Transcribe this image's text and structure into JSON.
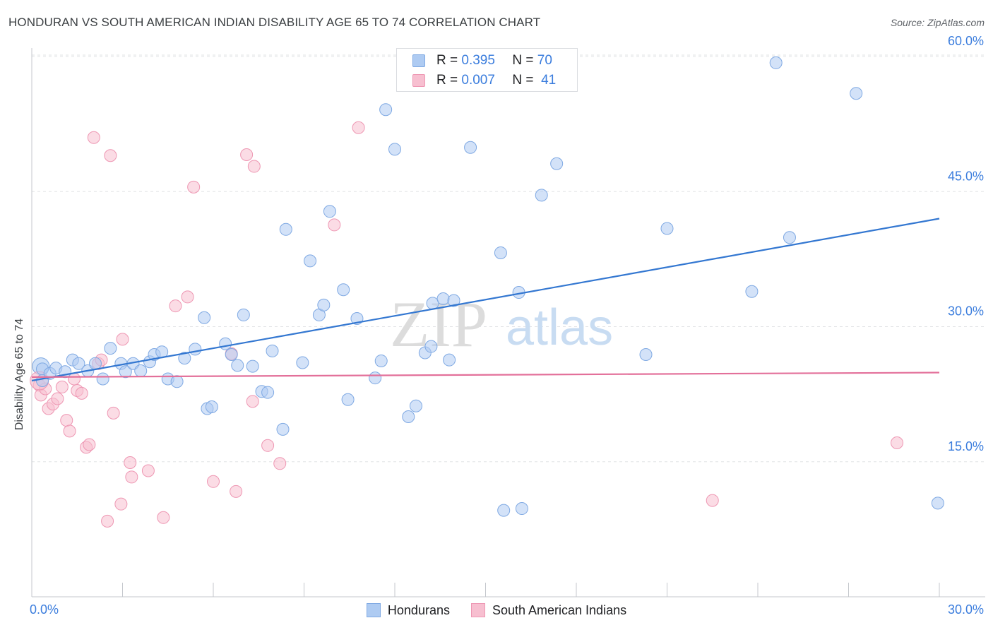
{
  "header": {
    "title": "HONDURAN VS SOUTH AMERICAN INDIAN DISABILITY AGE 65 TO 74 CORRELATION CHART",
    "source": "Source: ZipAtlas.com"
  },
  "watermark": {
    "part1": "ZIP",
    "part2": "atlas"
  },
  "colors": {
    "blue_fill": "#aecbf2",
    "blue_stroke": "#7fa9e3",
    "blue_line": "#3377d1",
    "pink_fill": "#f7bfd0",
    "pink_stroke": "#ee97b3",
    "pink_line": "#e3709a",
    "tick_text": "#3b7ddd",
    "grid": "#e1e3e6"
  },
  "legend": {
    "rows": [
      {
        "r_label": "R =",
        "r_value": "0.395",
        "n_label": "N =",
        "n_value": "70",
        "color": "blue"
      },
      {
        "r_label": "R =",
        "r_value": "0.007",
        "n_label": "N =",
        "n_value": "41",
        "color": "pink"
      }
    ]
  },
  "bottom_legend": [
    "Hondurans",
    "South American Indians"
  ],
  "chart_data": {
    "type": "scatter",
    "title": "HONDURAN VS SOUTH AMERICAN INDIAN DISABILITY AGE 65 TO 74 CORRELATION CHART",
    "xlabel": "",
    "ylabel": "Disability Age 65 to 74",
    "xlim": [
      0,
      30
    ],
    "ylim": [
      0,
      61
    ],
    "x_tick_labels": [
      "0.0%",
      "30.0%"
    ],
    "y_ticks": [
      15,
      30,
      45,
      60
    ],
    "y_tick_labels": [
      "15.0%",
      "30.0%",
      "45.0%",
      "60.0%"
    ],
    "grid": "horizontal dashed",
    "legend_position": "top-center",
    "series": [
      {
        "name": "Hondurans",
        "color": "blue",
        "trend": {
          "x": [
            0.0,
            30.0
          ],
          "y": [
            24.0,
            42.0
          ]
        },
        "points": [
          [
            0.35,
            25.3
          ],
          [
            0.35,
            24.0
          ],
          [
            0.6,
            24.8
          ],
          [
            0.8,
            25.4
          ],
          [
            1.1,
            25.0
          ],
          [
            1.35,
            26.3
          ],
          [
            1.85,
            25.1
          ],
          [
            1.55,
            25.9
          ],
          [
            2.1,
            25.9
          ],
          [
            2.35,
            24.2
          ],
          [
            2.6,
            27.6
          ],
          [
            2.95,
            25.9
          ],
          [
            3.1,
            25.0
          ],
          [
            3.35,
            25.9
          ],
          [
            3.6,
            25.1
          ],
          [
            3.9,
            26.1
          ],
          [
            4.05,
            26.9
          ],
          [
            4.3,
            27.2
          ],
          [
            4.5,
            24.2
          ],
          [
            4.8,
            23.9
          ],
          [
            5.05,
            26.5
          ],
          [
            5.4,
            27.5
          ],
          [
            5.7,
            31.0
          ],
          [
            5.8,
            20.9
          ],
          [
            5.95,
            21.1
          ],
          [
            6.4,
            28.1
          ],
          [
            6.6,
            26.9
          ],
          [
            6.8,
            25.7
          ],
          [
            7.0,
            31.3
          ],
          [
            7.3,
            25.6
          ],
          [
            7.6,
            22.8
          ],
          [
            7.8,
            22.7
          ],
          [
            7.95,
            27.3
          ],
          [
            8.3,
            18.6
          ],
          [
            8.4,
            40.8
          ],
          [
            8.95,
            26.0
          ],
          [
            9.2,
            37.3
          ],
          [
            9.5,
            31.3
          ],
          [
            9.65,
            32.4
          ],
          [
            9.85,
            42.8
          ],
          [
            10.3,
            34.1
          ],
          [
            10.45,
            21.9
          ],
          [
            10.75,
            30.9
          ],
          [
            11.35,
            24.3
          ],
          [
            11.55,
            26.2
          ],
          [
            11.7,
            54.1
          ],
          [
            12.0,
            49.7
          ],
          [
            12.45,
            20.0
          ],
          [
            12.7,
            21.2
          ],
          [
            13.0,
            27.1
          ],
          [
            13.2,
            27.8
          ],
          [
            13.25,
            32.6
          ],
          [
            13.6,
            33.1
          ],
          [
            13.8,
            26.3
          ],
          [
            13.95,
            32.9
          ],
          [
            14.5,
            49.9
          ],
          [
            15.1,
            58.2
          ],
          [
            15.5,
            38.2
          ],
          [
            15.6,
            9.6
          ],
          [
            16.1,
            33.8
          ],
          [
            16.2,
            9.8
          ],
          [
            16.85,
            44.6
          ],
          [
            17.35,
            48.1
          ],
          [
            20.3,
            26.9
          ],
          [
            21.0,
            40.9
          ],
          [
            23.8,
            33.9
          ],
          [
            24.6,
            59.3
          ],
          [
            25.05,
            39.9
          ],
          [
            27.25,
            55.9
          ],
          [
            29.95,
            10.4
          ]
        ],
        "large_points": [
          [
            0.3,
            25.6
          ],
          [
            0.25,
            24.0
          ]
        ]
      },
      {
        "name": "South American Indians",
        "color": "pink",
        "trend": {
          "x": [
            0.0,
            30.0
          ],
          "y": [
            24.4,
            24.9
          ]
        },
        "points": [
          [
            0.25,
            23.5
          ],
          [
            0.3,
            22.4
          ],
          [
            0.45,
            23.1
          ],
          [
            0.55,
            20.9
          ],
          [
            0.7,
            21.4
          ],
          [
            0.85,
            22.0
          ],
          [
            1.0,
            23.3
          ],
          [
            1.15,
            19.6
          ],
          [
            1.25,
            18.4
          ],
          [
            1.4,
            24.2
          ],
          [
            1.5,
            22.9
          ],
          [
            1.65,
            22.6
          ],
          [
            1.8,
            16.6
          ],
          [
            1.9,
            16.9
          ],
          [
            2.05,
            51.0
          ],
          [
            2.2,
            25.9
          ],
          [
            2.3,
            26.3
          ],
          [
            2.5,
            8.4
          ],
          [
            2.6,
            49.0
          ],
          [
            2.7,
            20.4
          ],
          [
            2.95,
            10.3
          ],
          [
            3.0,
            28.6
          ],
          [
            3.25,
            14.9
          ],
          [
            3.3,
            13.3
          ],
          [
            3.85,
            14.0
          ],
          [
            4.35,
            8.8
          ],
          [
            4.75,
            32.3
          ],
          [
            5.15,
            33.3
          ],
          [
            5.35,
            45.5
          ],
          [
            6.0,
            12.8
          ],
          [
            6.6,
            27.0
          ],
          [
            6.75,
            11.7
          ],
          [
            7.1,
            49.1
          ],
          [
            7.3,
            21.7
          ],
          [
            7.35,
            47.8
          ],
          [
            7.8,
            16.8
          ],
          [
            8.2,
            14.8
          ],
          [
            10.0,
            41.3
          ],
          [
            10.8,
            52.1
          ],
          [
            22.5,
            10.7
          ],
          [
            28.6,
            17.1
          ]
        ]
      }
    ]
  }
}
